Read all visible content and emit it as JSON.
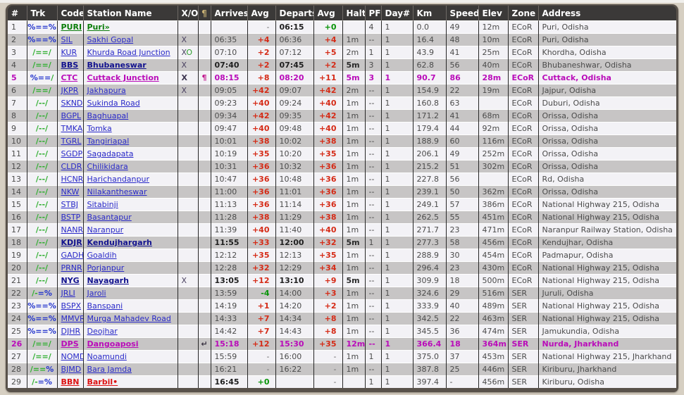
{
  "page": {
    "kind": "train-route-timetable"
  },
  "colors": {
    "page_bg": "#d6cfc2",
    "frame": "#59524b",
    "header_bg": "#3b3938",
    "row_light": "#f3f2f6",
    "row_gray": "#c7c5c5",
    "link_blue": "#2929c8",
    "major_navy": "#12128e",
    "origin_green": "#0a7d0a",
    "halt_magenta": "#b90cb9",
    "dest_red": "#dd1111",
    "delay_red": "#d52b17",
    "delay_green": "#089408",
    "trk_blue": "#2233cc",
    "trk_green": "#2fae2f",
    "pilcrow_gold": "#c9b175"
  },
  "table": {
    "columns": [
      "#",
      "Trk",
      "Code",
      "Station Name",
      "X/O",
      "¶",
      "Arrives",
      "Avg",
      "Departs",
      "Avg",
      "Halt",
      "PF",
      "Day#",
      "Km",
      "Speed",
      "Elev",
      "Zone",
      "Address"
    ],
    "row_fields": [
      "num",
      "trk_parts",
      "code",
      "station",
      "xo",
      "pilcrow",
      "arrives",
      "arr_avg",
      "departs",
      "dep_avg",
      "halt",
      "pf",
      "day",
      "km",
      "speed",
      "elev",
      "zone",
      "address",
      "type"
    ],
    "type_legend": {
      "o": "origin-green",
      "m": "major-bold",
      "x": "halt-magenta",
      "d": "destination-red",
      "": "normal"
    },
    "rows": [
      [
        "1",
        [
          [
            "%==%",
            "b"
          ]
        ],
        "PURI",
        "Puri»",
        "",
        "",
        "",
        "-",
        "06:15",
        "+0",
        "",
        "4",
        "1",
        "0.0",
        "49",
        "12m",
        "ECoR",
        "Puri, Odisha",
        "o"
      ],
      [
        "2",
        [
          [
            "%==%",
            "b"
          ]
        ],
        "SIL",
        "Sakhi Gopal",
        "X",
        "",
        "06:35",
        "+4",
        "06:36",
        "+4",
        "1m",
        "--",
        "1",
        "16.4",
        "48",
        "10m",
        "ECoR",
        "Puri, Odisha",
        ""
      ],
      [
        "3",
        [
          [
            "/==/",
            "g"
          ]
        ],
        "KUR",
        "Khurda Road Junction",
        "XO",
        "",
        "07:10",
        "+2",
        "07:12",
        "+5",
        "2m",
        "1",
        "1",
        "43.9",
        "41",
        "25m",
        "ECoR",
        "Khordha, Odisha",
        ""
      ],
      [
        "4",
        [
          [
            "/==/",
            "g"
          ]
        ],
        "BBS",
        "Bhubaneswar",
        "X",
        "",
        "07:40",
        "+2",
        "07:45",
        "+2",
        "5m",
        "3",
        "1",
        "62.8",
        "56",
        "40m",
        "ECoR",
        "Bhubaneshwar, Odisha",
        "m"
      ],
      [
        "5",
        [
          [
            "%==",
            "b"
          ],
          [
            "/",
            "g"
          ]
        ],
        "CTC",
        "Cuttack Junction",
        "X",
        "¶",
        "08:15",
        "+8",
        "08:20",
        "+11",
        "5m",
        "3",
        "1",
        "90.7",
        "86",
        "28m",
        "ECoR",
        "Cuttack, Odisha",
        "x"
      ],
      [
        "6",
        [
          [
            "/==/",
            "g"
          ]
        ],
        "JKPR",
        "Jakhapura",
        "X",
        "",
        "09:05",
        "+42",
        "09:07",
        "+42",
        "2m",
        "--",
        "1",
        "154.9",
        "22",
        "19m",
        "ECoR",
        "Jajpur, Odisha",
        ""
      ],
      [
        "7",
        [
          [
            "/--/",
            "g"
          ]
        ],
        "SKND",
        "Sukinda Road",
        "",
        "",
        "09:23",
        "+40",
        "09:24",
        "+40",
        "1m",
        "--",
        "1",
        "160.8",
        "63",
        "",
        "ECoR",
        "Duburi, Odisha",
        ""
      ],
      [
        "8",
        [
          [
            "/--/",
            "g"
          ]
        ],
        "BGPL",
        "Baghuapal",
        "",
        "",
        "09:34",
        "+42",
        "09:35",
        "+42",
        "1m",
        "--",
        "1",
        "171.2",
        "41",
        "68m",
        "ECoR",
        "Orissa, Odisha",
        ""
      ],
      [
        "9",
        [
          [
            "/--/",
            "g"
          ]
        ],
        "TMKA",
        "Tomka",
        "",
        "",
        "09:47",
        "+40",
        "09:48",
        "+40",
        "1m",
        "--",
        "1",
        "179.4",
        "44",
        "92m",
        "ECoR",
        "Orissa, Odisha",
        ""
      ],
      [
        "10",
        [
          [
            "/--/",
            "g"
          ]
        ],
        "TGRL",
        "Tangiriapal",
        "",
        "",
        "10:01",
        "+38",
        "10:02",
        "+38",
        "1m",
        "--",
        "1",
        "188.9",
        "60",
        "116m",
        "ECoR",
        "Orissa, Odisha",
        ""
      ],
      [
        "11",
        [
          [
            "/--/",
            "g"
          ]
        ],
        "SGDP",
        "Sagadapata",
        "",
        "",
        "10:19",
        "+35",
        "10:20",
        "+35",
        "1m",
        "--",
        "1",
        "206.1",
        "49",
        "252m",
        "ECoR",
        "Orissa, Odisha",
        ""
      ],
      [
        "12",
        [
          [
            "/--/",
            "g"
          ]
        ],
        "CLDR",
        "Chilikidara",
        "",
        "",
        "10:31",
        "+36",
        "10:32",
        "+36",
        "1m",
        "--",
        "1",
        "215.2",
        "51",
        "302m",
        "ECoR",
        "Orissa, Odisha",
        ""
      ],
      [
        "13",
        [
          [
            "/--/",
            "g"
          ]
        ],
        "HCNR",
        "Harichandanpur",
        "",
        "",
        "10:47",
        "+36",
        "10:48",
        "+36",
        "1m",
        "--",
        "1",
        "227.8",
        "56",
        "",
        "ECoR",
        "Rd, Odisha",
        ""
      ],
      [
        "14",
        [
          [
            "/--/",
            "g"
          ]
        ],
        "NKW",
        "Nilakantheswar",
        "",
        "",
        "11:00",
        "+36",
        "11:01",
        "+36",
        "1m",
        "--",
        "1",
        "239.1",
        "50",
        "362m",
        "ECoR",
        "Orissa, Odisha",
        ""
      ],
      [
        "15",
        [
          [
            "/--/",
            "g"
          ]
        ],
        "STBJ",
        "Sitabinji",
        "",
        "",
        "11:13",
        "+36",
        "11:14",
        "+36",
        "1m",
        "--",
        "1",
        "249.1",
        "57",
        "386m",
        "ECoR",
        "National Highway 215, Odisha",
        ""
      ],
      [
        "16",
        [
          [
            "/--/",
            "g"
          ]
        ],
        "BSTP",
        "Basantapur",
        "",
        "",
        "11:28",
        "+38",
        "11:29",
        "+38",
        "1m",
        "--",
        "1",
        "262.5",
        "55",
        "451m",
        "ECoR",
        "National Highway 215, Odisha",
        ""
      ],
      [
        "17",
        [
          [
            "/--/",
            "g"
          ]
        ],
        "NANR",
        "Naranpur",
        "",
        "",
        "11:39",
        "+40",
        "11:40",
        "+40",
        "1m",
        "--",
        "1",
        "271.7",
        "23",
        "471m",
        "ECoR",
        "Naranpur Railway Station, Odisha",
        ""
      ],
      [
        "18",
        [
          [
            "/--/",
            "g"
          ]
        ],
        "KDJR",
        "Kendujhargarh",
        "",
        "",
        "11:55",
        "+33",
        "12:00",
        "+32",
        "5m",
        "1",
        "1",
        "277.3",
        "58",
        "456m",
        "ECoR",
        "Kendujhar, Odisha",
        "m"
      ],
      [
        "19",
        [
          [
            "/--/",
            "g"
          ]
        ],
        "GADH",
        "Goaldih",
        "",
        "",
        "12:12",
        "+35",
        "12:13",
        "+35",
        "1m",
        "--",
        "1",
        "288.9",
        "30",
        "454m",
        "ECoR",
        "Padmapur, Odisha",
        ""
      ],
      [
        "20",
        [
          [
            "/--/",
            "g"
          ]
        ],
        "PRNR",
        "Porjanpur",
        "",
        "",
        "12:28",
        "+32",
        "12:29",
        "+34",
        "1m",
        "--",
        "1",
        "296.4",
        "23",
        "430m",
        "ECoR",
        "National Highway 215, Odisha",
        ""
      ],
      [
        "21",
        [
          [
            "/--/",
            "g"
          ]
        ],
        "NYG",
        "Nayagarh",
        "X",
        "",
        "13:05",
        "+12",
        "13:10",
        "+9",
        "5m",
        "--",
        "1",
        "309.9",
        "18",
        "500m",
        "ECoR",
        "National Highway 215, Odisha",
        "m"
      ],
      [
        "22",
        [
          [
            "/-",
            "g"
          ],
          [
            "=%",
            "b"
          ]
        ],
        "JRLI",
        "Jaroli",
        "",
        "",
        "13:59",
        "-4",
        "14:00",
        "+3",
        "1m",
        "--",
        "1",
        "324.6",
        "29",
        "516m",
        "SER",
        "Juruli, Odisha",
        ""
      ],
      [
        "23",
        [
          [
            "%==%",
            "b"
          ]
        ],
        "BSPX",
        "Banspani",
        "",
        "",
        "14:19",
        "+1",
        "14:20",
        "+2",
        "1m",
        "--",
        "1",
        "333.9",
        "40",
        "489m",
        "SER",
        "National Highway 215, Odisha",
        ""
      ],
      [
        "24",
        [
          [
            "%==%",
            "b"
          ]
        ],
        "MMVR",
        "Murga Mahadev Road",
        "",
        "",
        "14:33",
        "+7",
        "14:34",
        "+8",
        "1m",
        "--",
        "1",
        "342.5",
        "22",
        "463m",
        "SER",
        "National Highway 215, Odisha",
        ""
      ],
      [
        "25",
        [
          [
            "%==%",
            "b"
          ]
        ],
        "DJHR",
        "Deojhar",
        "",
        "",
        "14:42",
        "+7",
        "14:43",
        "+8",
        "1m",
        "--",
        "1",
        "345.5",
        "36",
        "474m",
        "SER",
        "Jamukundia, Odisha",
        ""
      ],
      [
        "26",
        [
          [
            "/==/",
            "g"
          ]
        ],
        "DPS",
        "Dangoaposi",
        "",
        "↵",
        "15:18",
        "+12",
        "15:30",
        "+35",
        "12m",
        "--",
        "1",
        "366.4",
        "18",
        "364m",
        "SER",
        "Nurda, Jharkhand",
        "x"
      ],
      [
        "27",
        [
          [
            "/==/",
            "g"
          ]
        ],
        "NOMD",
        "Noamundi",
        "",
        "",
        "15:59",
        "-",
        "16:00",
        "-",
        "1m",
        "1",
        "1",
        "375.0",
        "37",
        "453m",
        "SER",
        "National Highway 215, Jharkhand",
        ""
      ],
      [
        "28",
        [
          [
            "/==",
            "g"
          ],
          [
            "%",
            "b"
          ]
        ],
        "BJMD",
        "Bara Jamda",
        "",
        "",
        "16:21",
        "-",
        "16:22",
        "-",
        "1m",
        "--",
        "1",
        "387.8",
        "25",
        "446m",
        "SER",
        "Kiriburu, Jharkhand",
        ""
      ],
      [
        "29",
        [
          [
            "/-",
            "g"
          ],
          [
            "=%",
            "b"
          ]
        ],
        "BBN",
        "Barbil•",
        "",
        "",
        "16:45",
        "+0",
        "",
        "-",
        "",
        "1",
        "1",
        "397.4",
        "-",
        "456m",
        "SER",
        "Kiriburu, Odisha",
        "d"
      ]
    ]
  }
}
